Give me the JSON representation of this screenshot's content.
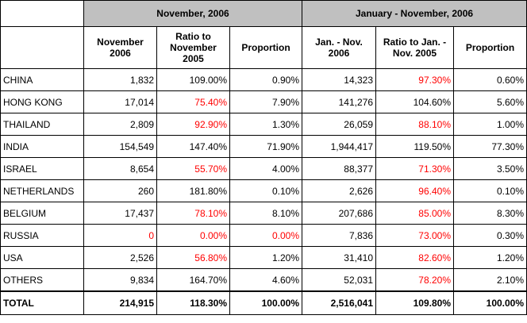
{
  "groups": {
    "nov": "November, 2006",
    "jan_nov": "January - November, 2006"
  },
  "columns": {
    "nov_value": "November 2006",
    "nov_ratio": "Ratio to November 2005",
    "nov_prop": "Proportion",
    "ytd_value": "Jan. - Nov. 2006",
    "ytd_ratio": "Ratio to Jan. - Nov. 2005",
    "ytd_prop": "Proportion"
  },
  "accent_colors": {
    "negative": "#ff0000",
    "header_bg": "#c0c0c0"
  },
  "rows": [
    {
      "name": "CHINA",
      "nov_value": "1,832",
      "nov_ratio": "109.00%",
      "nov_prop": "0.90%",
      "ytd_value": "14,323",
      "ytd_ratio": "97.30%",
      "ytd_prop": "0.60%"
    },
    {
      "name": "HONG KONG",
      "nov_value": "17,014",
      "nov_ratio": "75.40%",
      "nov_prop": "7.90%",
      "ytd_value": "141,276",
      "ytd_ratio": "104.60%",
      "ytd_prop": "5.60%"
    },
    {
      "name": "THAILAND",
      "nov_value": "2,809",
      "nov_ratio": "92.90%",
      "nov_prop": "1.30%",
      "ytd_value": "26,059",
      "ytd_ratio": "88.10%",
      "ytd_prop": "1.00%"
    },
    {
      "name": "INDIA",
      "nov_value": "154,549",
      "nov_ratio": "147.40%",
      "nov_prop": "71.90%",
      "ytd_value": "1,944,417",
      "ytd_ratio": "119.50%",
      "ytd_prop": "77.30%"
    },
    {
      "name": "ISRAEL",
      "nov_value": "8,654",
      "nov_ratio": "55.70%",
      "nov_prop": "4.00%",
      "ytd_value": "88,377",
      "ytd_ratio": "71.30%",
      "ytd_prop": "3.50%"
    },
    {
      "name": "NETHERLANDS",
      "nov_value": "260",
      "nov_ratio": "181.80%",
      "nov_prop": "0.10%",
      "ytd_value": "2,626",
      "ytd_ratio": "96.40%",
      "ytd_prop": "0.10%"
    },
    {
      "name": "BELGIUM",
      "nov_value": "17,437",
      "nov_ratio": "78.10%",
      "nov_prop": "8.10%",
      "ytd_value": "207,686",
      "ytd_ratio": "85.00%",
      "ytd_prop": "8.30%"
    },
    {
      "name": "RUSSIA",
      "nov_value": "0",
      "nov_ratio": "0.00%",
      "nov_prop": "0.00%",
      "ytd_value": "7,836",
      "ytd_ratio": "73.00%",
      "ytd_prop": "0.30%"
    },
    {
      "name": "USA",
      "nov_value": "2,526",
      "nov_ratio": "56.80%",
      "nov_prop": "1.20%",
      "ytd_value": "31,410",
      "ytd_ratio": "82.60%",
      "ytd_prop": "1.20%"
    },
    {
      "name": "OTHERS",
      "nov_value": "9,834",
      "nov_ratio": "164.70%",
      "nov_prop": "4.60%",
      "ytd_value": "52,031",
      "ytd_ratio": "78.20%",
      "ytd_prop": "2.10%"
    }
  ],
  "total": {
    "name": "TOTAL",
    "nov_value": "214,915",
    "nov_ratio": "118.30%",
    "nov_prop": "100.00%",
    "ytd_value": "2,516,041",
    "ytd_ratio": "109.80%",
    "ytd_prop": "100.00%"
  }
}
